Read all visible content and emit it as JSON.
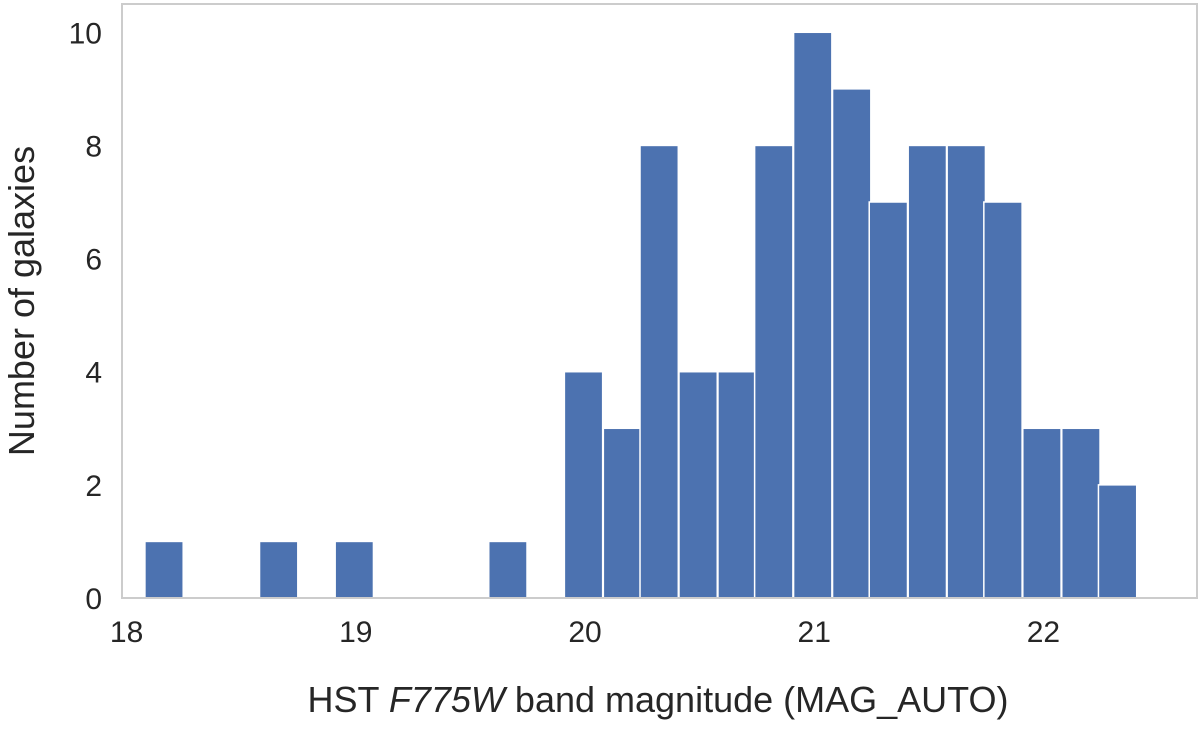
{
  "chart_data": {
    "type": "bar",
    "title": "",
    "xlabel_prefix": "HST ",
    "xlabel_filter": "F775W",
    "xlabel_suffix": " band magnitude (MAG_AUTO)",
    "ylabel": "Number of galaxies",
    "xlim": [
      17.98,
      22.67
    ],
    "ylim": [
      0,
      10.5
    ],
    "x_ticks": [
      18,
      19,
      20,
      21,
      22
    ],
    "y_ticks": [
      0,
      2,
      4,
      6,
      8,
      10
    ],
    "grid": false,
    "bin_width": 0.167,
    "bins": [
      {
        "left": 18.08,
        "value": 1
      },
      {
        "left": 18.58,
        "value": 1
      },
      {
        "left": 18.91,
        "value": 1
      },
      {
        "left": 19.58,
        "value": 1
      },
      {
        "left": 19.91,
        "value": 4
      },
      {
        "left": 20.08,
        "value": 3
      },
      {
        "left": 20.24,
        "value": 8
      },
      {
        "left": 20.41,
        "value": 4
      },
      {
        "left": 20.58,
        "value": 4
      },
      {
        "left": 20.74,
        "value": 8
      },
      {
        "left": 20.91,
        "value": 10
      },
      {
        "left": 21.08,
        "value": 9
      },
      {
        "left": 21.24,
        "value": 7
      },
      {
        "left": 21.41,
        "value": 8
      },
      {
        "left": 21.58,
        "value": 8
      },
      {
        "left": 21.74,
        "value": 7
      },
      {
        "left": 21.91,
        "value": 3
      },
      {
        "left": 22.08,
        "value": 3
      },
      {
        "left": 22.24,
        "value": 2
      }
    ],
    "colors": {
      "bar": "#4c72b0",
      "bar_edge": "#ffffff",
      "axes_edge": "#cccccc",
      "text": "#262626"
    }
  }
}
